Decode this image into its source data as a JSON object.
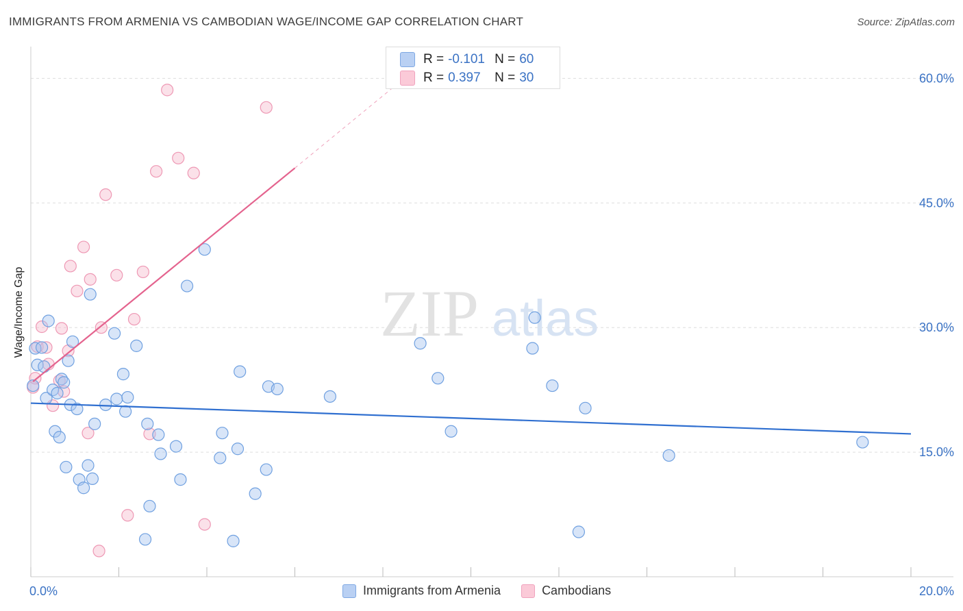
{
  "title": "IMMIGRANTS FROM ARMENIA VS CAMBODIAN WAGE/INCOME GAP CORRELATION CHART",
  "source": "Source: ZipAtlas.com",
  "watermark": {
    "zip": "ZIP",
    "atlas": "atlas"
  },
  "legend_inset": {
    "r_label": "R =",
    "n_label": "N =",
    "rows": [
      {
        "r": "-0.101",
        "n": "60"
      },
      {
        "r": "0.397",
        "n": "30"
      }
    ]
  },
  "chart_data": {
    "type": "scatter",
    "title": "IMMIGRANTS FROM ARMENIA VS CAMBODIAN WAGE/INCOME GAP CORRELATION CHART",
    "xlabel": "",
    "ylabel": "Wage/Income Gap",
    "xlim": [
      0,
      20
    ],
    "ylim": [
      0,
      63
    ],
    "x_tick_labels": [
      "0.0%",
      "20.0%"
    ],
    "y_ticks": [
      15,
      30,
      45,
      60
    ],
    "y_tick_labels": [
      "15.0%",
      "30.0%",
      "45.0%",
      "60.0%"
    ],
    "grid": true,
    "legend_position": "bottom-center",
    "colors": {
      "armenia_fill": "#a9c6ef",
      "armenia_stroke": "#6fa0e0",
      "armenia_line": "#2f6fd0",
      "cambodian_fill": "#f7bccf",
      "cambodian_stroke": "#ee98b4",
      "cambodian_line": "#e4638e",
      "tick_label": "#3a72c4",
      "grid": "#dddddd"
    },
    "series": [
      {
        "name": "Immigrants from Armenia",
        "r": -0.101,
        "n": 60,
        "trend": {
          "x": [
            0,
            20
          ],
          "y": [
            20.9,
            17.2
          ]
        },
        "points": [
          [
            0.05,
            23.0
          ],
          [
            0.1,
            27.5
          ],
          [
            0.15,
            25.5
          ],
          [
            0.25,
            27.6
          ],
          [
            0.3,
            25.3
          ],
          [
            0.35,
            21.5
          ],
          [
            0.4,
            30.8
          ],
          [
            0.5,
            22.5
          ],
          [
            0.55,
            17.5
          ],
          [
            0.6,
            22.1
          ],
          [
            0.65,
            16.8
          ],
          [
            0.7,
            23.8
          ],
          [
            0.75,
            23.4
          ],
          [
            0.8,
            13.2
          ],
          [
            0.85,
            26.0
          ],
          [
            0.9,
            20.7
          ],
          [
            0.95,
            28.3
          ],
          [
            1.05,
            20.2
          ],
          [
            1.1,
            11.7
          ],
          [
            1.2,
            10.7
          ],
          [
            1.3,
            13.4
          ],
          [
            1.35,
            34.0
          ],
          [
            1.4,
            11.8
          ],
          [
            1.45,
            18.4
          ],
          [
            1.7,
            20.7
          ],
          [
            1.9,
            29.3
          ],
          [
            1.95,
            21.4
          ],
          [
            2.1,
            24.4
          ],
          [
            2.15,
            19.9
          ],
          [
            2.2,
            21.6
          ],
          [
            2.4,
            27.8
          ],
          [
            2.6,
            4.5
          ],
          [
            2.65,
            18.4
          ],
          [
            2.7,
            8.5
          ],
          [
            2.9,
            17.1
          ],
          [
            2.95,
            14.8
          ],
          [
            3.3,
            15.7
          ],
          [
            3.4,
            11.7
          ],
          [
            3.55,
            35.0
          ],
          [
            3.95,
            39.4
          ],
          [
            4.3,
            14.3
          ],
          [
            4.35,
            17.3
          ],
          [
            4.6,
            4.3
          ],
          [
            4.7,
            15.4
          ],
          [
            4.75,
            24.7
          ],
          [
            5.1,
            10.0
          ],
          [
            5.35,
            12.9
          ],
          [
            5.4,
            22.9
          ],
          [
            5.6,
            22.6
          ],
          [
            6.8,
            21.7
          ],
          [
            8.85,
            28.1
          ],
          [
            9.25,
            23.9
          ],
          [
            9.55,
            17.5
          ],
          [
            11.4,
            27.5
          ],
          [
            11.45,
            31.2
          ],
          [
            11.85,
            23.0
          ],
          [
            12.45,
            5.4
          ],
          [
            12.6,
            20.3
          ],
          [
            14.5,
            14.6
          ],
          [
            18.9,
            16.2
          ]
        ]
      },
      {
        "name": "Cambodians",
        "r": 0.397,
        "n": 30,
        "trend": {
          "x": [
            0.05,
            6.0
          ],
          "y": [
            23.5,
            49.2
          ]
        },
        "trend_extension": {
          "x": [
            6.0,
            8.3
          ],
          "y": [
            49.2,
            59.2
          ]
        },
        "points": [
          [
            0.05,
            22.8
          ],
          [
            0.1,
            23.9
          ],
          [
            0.15,
            27.7
          ],
          [
            0.25,
            30.1
          ],
          [
            0.35,
            27.6
          ],
          [
            0.4,
            25.6
          ],
          [
            0.5,
            20.6
          ],
          [
            0.65,
            23.6
          ],
          [
            0.7,
            29.9
          ],
          [
            0.75,
            22.3
          ],
          [
            0.85,
            27.2
          ],
          [
            0.9,
            37.4
          ],
          [
            1.05,
            34.4
          ],
          [
            1.2,
            39.7
          ],
          [
            1.3,
            17.3
          ],
          [
            1.35,
            35.8
          ],
          [
            1.6,
            30.0
          ],
          [
            1.7,
            46.0
          ],
          [
            1.95,
            36.3
          ],
          [
            2.2,
            7.4
          ],
          [
            2.35,
            31.0
          ],
          [
            2.55,
            36.7
          ],
          [
            2.7,
            17.2
          ],
          [
            2.85,
            48.8
          ],
          [
            3.1,
            58.6
          ],
          [
            3.35,
            50.4
          ],
          [
            3.7,
            48.6
          ],
          [
            3.95,
            6.3
          ],
          [
            5.35,
            56.5
          ],
          [
            1.55,
            3.1
          ]
        ]
      }
    ]
  },
  "legend_bottom": [
    {
      "label": "Immigrants from Armenia"
    },
    {
      "label": "Cambodians"
    }
  ]
}
